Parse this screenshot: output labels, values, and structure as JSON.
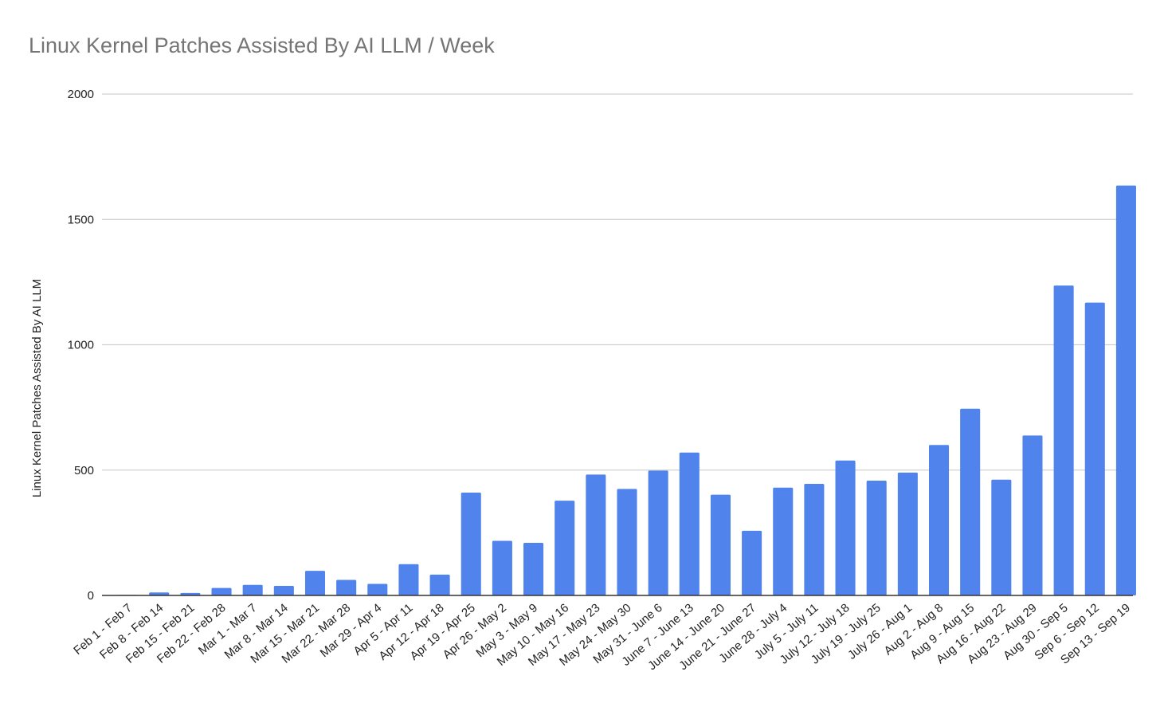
{
  "chart_data": {
    "type": "bar",
    "title": "Linux Kernel Patches Assisted By AI LLM / Week",
    "xlabel": "",
    "ylabel": "Linux Kernel Patches Assisted By AI LLM",
    "ylim": [
      0,
      2000
    ],
    "yticks": [
      0,
      500,
      1000,
      1500,
      2000
    ],
    "grid": true,
    "legend": "none",
    "bar_color": "#5083ec",
    "categories": [
      "Feb 1 - Feb 7",
      "Feb 8 - Feb 14",
      "Feb 15 - Feb 21",
      "Feb 22 - Feb 28",
      "Mar 1 - Mar 7",
      "Mar 8 - Mar 14",
      "Mar 15 - Mar 21",
      "Mar 22 - Mar 28",
      "Mar 29 - Apr 4",
      "Apr 5 - Apr 11",
      "Apr 12 - Apr 18",
      "Apr 19 - Apr 25",
      "Apr 26 - May 2",
      "May 3 - May 9",
      "May 10 - May 16",
      "May 17 - May 23",
      "May 24 - May 30",
      "May 31 - June 6",
      "June 7 - June 13",
      "June 14 - June 20",
      "June 21 - June 27",
      "June 28 - July 4",
      "July 5 - July 11",
      "July 12 - July 18",
      "July 19 - July 25",
      "July 26 - Aug 1",
      "Aug 2 - Aug 8",
      "Aug 9 - Aug 15",
      "Aug 16 - Aug 22",
      "Aug 23 - Aug 29",
      "Aug 30 - Sep 5",
      "Sep 6 - Sep 12",
      "Sep 13 - Sep 19"
    ],
    "values": [
      2,
      12,
      10,
      30,
      42,
      38,
      98,
      62,
      46,
      125,
      83,
      410,
      218,
      210,
      378,
      482,
      425,
      498,
      570,
      402,
      258,
      430,
      445,
      538,
      458,
      490,
      600,
      745,
      462,
      638,
      1236,
      1168,
      1635
    ]
  }
}
